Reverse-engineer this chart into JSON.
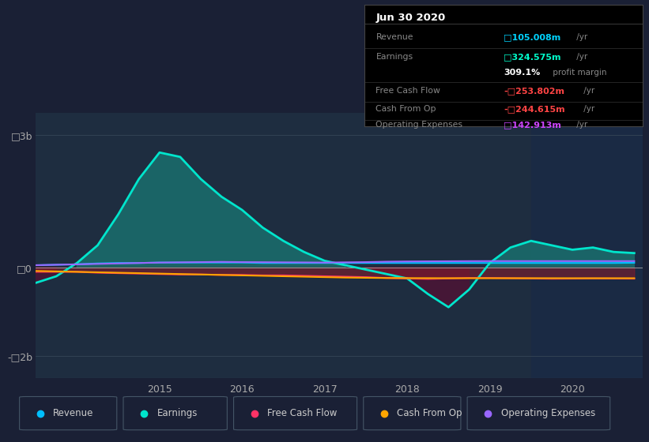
{
  "bg_color": "#1a2035",
  "plot_bg_color": "#1e2d40",
  "title": "Jun 30 2020",
  "yticks": [
    "□3b",
    "□0",
    "-□2b"
  ],
  "ytick_vals": [
    3000000000,
    0,
    -2000000000
  ],
  "ylim": [
    -2500000000,
    3500000000
  ],
  "xlim": [
    2013.5,
    2020.85
  ],
  "xticks": [
    2015,
    2016,
    2017,
    2018,
    2019,
    2020
  ],
  "shaded_region_start": 2019.5,
  "revenue_color": "#00bfff",
  "earnings_color": "#00e5cc",
  "free_cashflow_color": "#ff3366",
  "cash_from_op_color": "#ffa500",
  "op_expenses_color": "#9966ff",
  "legend_items": [
    {
      "label": "Revenue",
      "color": "#00bfff"
    },
    {
      "label": "Earnings",
      "color": "#00e5cc"
    },
    {
      "label": "Free Cash Flow",
      "color": "#ff3366"
    },
    {
      "label": "Cash From Op",
      "color": "#ffa500"
    },
    {
      "label": "Operating Expenses",
      "color": "#9966ff"
    }
  ],
  "t": [
    2013.5,
    2013.75,
    2014.0,
    2014.25,
    2014.5,
    2014.75,
    2015.0,
    2015.25,
    2015.5,
    2015.75,
    2016.0,
    2016.25,
    2016.5,
    2016.75,
    2017.0,
    2017.25,
    2017.5,
    2017.75,
    2018.0,
    2018.25,
    2018.5,
    2018.75,
    2019.0,
    2019.25,
    2019.5,
    2019.75,
    2020.0,
    2020.25,
    2020.5,
    2020.75
  ],
  "revenue": [
    50000000,
    60000000,
    70000000,
    90000000,
    100000000,
    100000000,
    110000000,
    110000000,
    110000000,
    110000000,
    110000000,
    100000000,
    100000000,
    100000000,
    100000000,
    100000000,
    100000000,
    100000000,
    100000000,
    100000000,
    100000000,
    100000000,
    100000000,
    100000000,
    100000000,
    100000000,
    100000000,
    100000000,
    100000000,
    105000000
  ],
  "earnings": [
    -350000000,
    -200000000,
    100000000,
    500000000,
    1200000000,
    2000000000,
    2600000000,
    2500000000,
    2000000000,
    1600000000,
    1300000000,
    900000000,
    600000000,
    350000000,
    150000000,
    50000000,
    -50000000,
    -150000000,
    -250000000,
    -600000000,
    -900000000,
    -500000000,
    100000000,
    450000000,
    600000000,
    500000000,
    400000000,
    450000000,
    350000000,
    324000000
  ],
  "free_cashflow": [
    -100000000,
    -100000000,
    -100000000,
    -120000000,
    -130000000,
    -140000000,
    -150000000,
    -160000000,
    -160000000,
    -170000000,
    -170000000,
    -180000000,
    -180000000,
    -190000000,
    -200000000,
    -210000000,
    -220000000,
    -240000000,
    -250000000,
    -260000000,
    -250000000,
    -240000000,
    -240000000,
    -245000000,
    -250000000,
    -255000000,
    -253000000,
    -250000000,
    -252000000,
    -253802000
  ],
  "cash_from_op": [
    -80000000,
    -90000000,
    -100000000,
    -110000000,
    -120000000,
    -130000000,
    -140000000,
    -150000000,
    -160000000,
    -170000000,
    -180000000,
    -190000000,
    -200000000,
    -210000000,
    -220000000,
    -230000000,
    -235000000,
    -240000000,
    -242000000,
    -243000000,
    -244000000,
    -244000000,
    -244000000,
    -244000000,
    -244000000,
    -244000000,
    -244600000,
    -244600000,
    -244600000,
    -244615000
  ],
  "op_expenses": [
    50000000,
    60000000,
    70000000,
    80000000,
    90000000,
    100000000,
    110000000,
    115000000,
    120000000,
    125000000,
    120000000,
    118000000,
    115000000,
    113000000,
    110000000,
    115000000,
    120000000,
    130000000,
    135000000,
    138000000,
    140000000,
    142000000,
    143000000,
    143000000,
    143000000,
    143000000,
    143000000,
    143000000,
    143000000,
    142913000
  ]
}
